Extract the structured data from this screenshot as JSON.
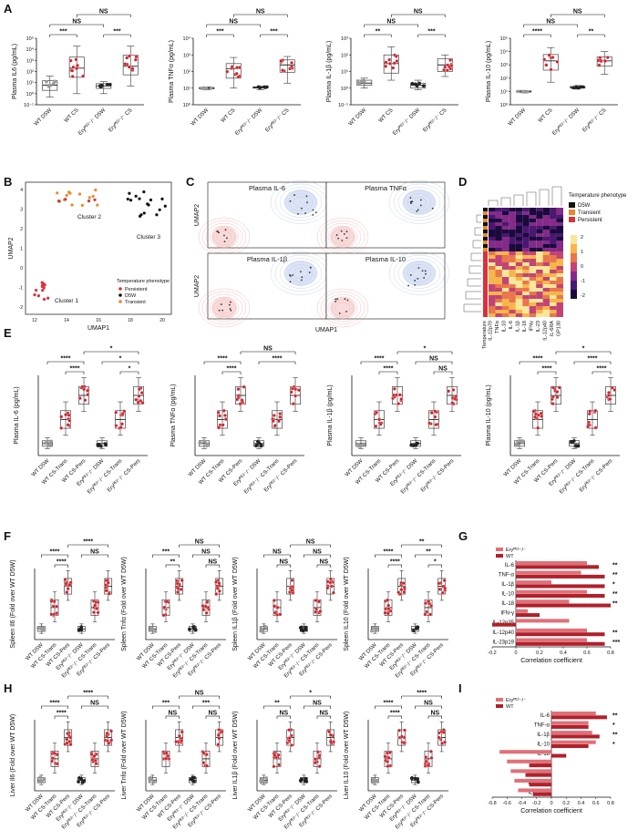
{
  "panel_letters": [
    "A",
    "B",
    "C",
    "D",
    "E",
    "F",
    "G",
    "H",
    "I"
  ],
  "colors": {
    "wt_box": "#888888",
    "d5w_pt": "#9a9a9a",
    "ery_pt": "#222222",
    "cs_pt": "#c8242c",
    "bar_light": "#e07078",
    "bar_dark": "#b0202a",
    "persistent": "#d9323a",
    "d5w": "#111111",
    "transient": "#e8892a"
  },
  "chart_data": [
    {
      "panel": "A",
      "type": "box",
      "log_y": true,
      "ylabel": "Plasma IL6 (pg/mL)",
      "yticks": [
        "10⁻¹",
        "10⁰",
        "10¹",
        "10²",
        "10³",
        "10⁴",
        "10⁵"
      ],
      "categories": [
        "WT D5W",
        "WT CS",
        "Eryᴾᴱ²⁻/⁻ D5W",
        "Eryᴾᴱ²⁻/⁻ CS"
      ],
      "box_values": [
        {
          "min": 0.5,
          "q1": 2,
          "median": 6,
          "q3": 15,
          "max": 40
        },
        {
          "min": 1,
          "q1": 30,
          "median": 200,
          "q3": 2000,
          "max": 20000
        },
        {
          "min": 1,
          "q1": 3,
          "median": 5,
          "q3": 8,
          "max": 12
        },
        {
          "min": 5,
          "q1": 50,
          "median": 300,
          "q3": 3000,
          "max": 20000
        }
      ],
      "significance": [
        "***",
        "***",
        "NS",
        "NS"
      ]
    },
    {
      "panel": "A",
      "type": "box",
      "log_y": true,
      "ylabel": "Plasma TNFα (pg/mL)",
      "yticks": [
        "10⁰",
        "10¹",
        "10²",
        "10³",
        "10⁴"
      ],
      "categories": [
        "WT D5W",
        "WT CS",
        "Eryᴾᴱ²⁻/⁻ D5W",
        "Eryᴾᴱ²⁻/⁻ CS"
      ],
      "box_values": [
        {
          "min": 8,
          "q1": 9,
          "median": 10,
          "q3": 11,
          "max": 12
        },
        {
          "min": 10,
          "q1": 40,
          "median": 150,
          "q3": 300,
          "max": 700
        },
        {
          "min": 8,
          "q1": 10,
          "median": 11,
          "q3": 12,
          "max": 13
        },
        {
          "min": 20,
          "q1": 90,
          "median": 250,
          "q3": 500,
          "max": 800
        }
      ],
      "significance": [
        "***",
        "***",
        "NS",
        "NS"
      ]
    },
    {
      "panel": "A",
      "type": "box",
      "log_y": true,
      "ylabel": "Plasma IL-1β (pg/mL)",
      "yticks": [
        "10⁻¹",
        "10⁰",
        "10¹",
        "10²",
        "10³"
      ],
      "categories": [
        "WT D5W",
        "WT CS",
        "Eryᴾᴱ²⁻/⁻ D5W",
        "Eryᴾᴱ²⁻/⁻ CS"
      ],
      "box_values": [
        {
          "min": 1,
          "q1": 1.5,
          "median": 2,
          "q3": 3,
          "max": 4
        },
        {
          "min": 3,
          "q1": 8,
          "median": 30,
          "q3": 100,
          "max": 300
        },
        {
          "min": 0.8,
          "q1": 1,
          "median": 1.5,
          "q3": 2,
          "max": 3
        },
        {
          "min": 5,
          "q1": 10,
          "median": 25,
          "q3": 60,
          "max": 100
        }
      ],
      "significance": [
        "**",
        "***",
        "NS",
        "NS"
      ]
    },
    {
      "panel": "A",
      "type": "box",
      "log_y": true,
      "ylabel": "Plasma IL-10 (pg/mL)",
      "yticks": [
        "10⁰",
        "10¹",
        "10²",
        "10³",
        "10⁴",
        "10⁵"
      ],
      "categories": [
        "WT D5W",
        "WT CS",
        "Eryᴾᴱ²⁻/⁻ D5W",
        "Eryᴾᴱ²⁻/⁻ CS"
      ],
      "box_values": [
        {
          "min": 8,
          "q1": 9,
          "median": 10,
          "q3": 11,
          "max": 12
        },
        {
          "min": 50,
          "q1": 400,
          "median": 2000,
          "q3": 6000,
          "max": 20000
        },
        {
          "min": 15,
          "q1": 18,
          "median": 20,
          "q3": 24,
          "max": 28
        },
        {
          "min": 200,
          "q1": 800,
          "median": 2000,
          "q3": 4000,
          "max": 10000
        }
      ],
      "significance": [
        "****",
        "**",
        "NS",
        "NS"
      ]
    },
    {
      "panel": "B",
      "type": "scatter",
      "xlabel": "UMAP1",
      "ylabel": "UMAP2",
      "xticks": [
        "12",
        "14",
        "16",
        "18",
        "20"
      ],
      "yticks": [
        "-2",
        "-1",
        "0",
        "1",
        "2",
        "3",
        "4"
      ],
      "clusters": [
        "Cluster 1",
        "Cluster 2",
        "Cluster 3"
      ],
      "legend_title": "Temperature phenotype",
      "legend": [
        "Persistent",
        "D5W",
        "Transient"
      ]
    },
    {
      "panel": "C",
      "type": "density",
      "titles": [
        "Plasma IL-6",
        "Plasma TNFα",
        "Plasma IL-1β",
        "Plasma IL-10"
      ],
      "xlabel": "UMAP1",
      "ylabel": "UMAP2"
    },
    {
      "panel": "D",
      "type": "heatmap",
      "row_labels": [
        "Temperature",
        "IL-12p70",
        "TNFα",
        "IL-10",
        "IL-6",
        "IL-1β",
        "IL-18",
        "IFNγ",
        "IL-23",
        "IL-12p40",
        "IL-6RA",
        "GP130"
      ],
      "legend_title": "Temperature phenotype",
      "legend": [
        "D5W",
        "Transient",
        "Persistent"
      ],
      "scale_ticks": [
        "2",
        "1",
        "0",
        "-1",
        "-2"
      ]
    },
    {
      "panel": "E",
      "type": "box",
      "log_y": true,
      "ylabel": "Plasma IL-6 (pg/mL)",
      "categories": [
        "WT D5W",
        "WT CS-Trans",
        "WT CS-Pers",
        "Eryᴾᴱ²⁻/⁻ D5W",
        "Eryᴾᴱ²⁻/⁻ CS-Trans",
        "Eryᴾᴱ²⁻/⁻ CS-Pers"
      ],
      "significance": [
        "****",
        "****",
        "*",
        "*",
        "*"
      ]
    },
    {
      "panel": "E",
      "type": "box",
      "log_y": true,
      "ylabel": "Plasma TNFα (pg/mL)",
      "categories": [
        "WT D5W",
        "WT CS-Trans",
        "WT CS-Pers",
        "Eryᴾᴱ²⁻/⁻ D5W",
        "Eryᴾᴱ²⁻/⁻ CS-Trans",
        "Eryᴾᴱ²⁻/⁻ CS-Pers"
      ],
      "significance": [
        "****",
        "****",
        "NS",
        "****"
      ]
    },
    {
      "panel": "E",
      "type": "box",
      "log_y": true,
      "ylabel": "Plasma IL-1β (pg/mL)",
      "categories": [
        "WT D5W",
        "WT CS-Trans",
        "WT CS-Pers",
        "Eryᴾᴱ²⁻/⁻ D5W",
        "Eryᴾᴱ²⁻/⁻ CS-Trans",
        "Eryᴾᴱ²⁻/⁻ CS-Pers"
      ],
      "significance": [
        "****",
        "****",
        "*",
        "NS",
        "NS"
      ]
    },
    {
      "panel": "E",
      "type": "box",
      "log_y": true,
      "ylabel": "Plasma IL-10 (pg/mL)",
      "categories": [
        "WT D5W",
        "WT CS-Trans",
        "WT CS-Pers",
        "Eryᴾᴱ²⁻/⁻ D5W",
        "Eryᴾᴱ²⁻/⁻ CS-Trans",
        "Eryᴾᴱ²⁻/⁻ CS-Pers"
      ],
      "significance": [
        "****",
        "****",
        "*",
        "****",
        "****"
      ]
    },
    {
      "panel": "F",
      "type": "box",
      "ylabel": "Spleen Il6 (Fold over WT D5W)",
      "categories": [
        "WT D5W",
        "WT CS-Trans",
        "WT CS-Pers",
        "Eryᴾᴱ²⁻/⁻ D5W",
        "Eryᴾᴱ²⁻/⁻ CS-Trans",
        "Eryᴾᴱ²⁻/⁻ CS-Pers"
      ],
      "significance": [
        "****",
        "****",
        "****",
        "NS"
      ]
    },
    {
      "panel": "F",
      "type": "box",
      "ylabel": "Spleen Tnfα (Fold over WT D5W)",
      "categories": [
        "WT D5W",
        "WT CS-Trans",
        "WT CS-Pers",
        "Eryᴾᴱ²⁻/⁻ D5W",
        "Eryᴾᴱ²⁻/⁻ CS-Trans",
        "Eryᴾᴱ²⁻/⁻ CS-Pers"
      ],
      "significance": [
        "***",
        "**",
        "NS",
        "NS",
        "NS"
      ]
    },
    {
      "panel": "F",
      "type": "box",
      "ylabel": "Spleen IL1β (Fold over WT D5W)",
      "categories": [
        "WT D5W",
        "WT CS-Trans",
        "WT CS-Pers",
        "Eryᴾᴱ²⁻/⁻ D5W",
        "Eryᴾᴱ²⁻/⁻ CS-Trans",
        "Eryᴾᴱ²⁻/⁻ CS-Pers"
      ],
      "significance": [
        "NS",
        "NS",
        "NS",
        "NS",
        "NS"
      ]
    },
    {
      "panel": "F",
      "type": "box",
      "ylabel": "Spleen IL10 (Fold over WT D5W)",
      "categories": [
        "WT D5W",
        "WT CS-Trans",
        "WT CS-Pers",
        "Eryᴾᴱ²⁻/⁻ D5W",
        "Eryᴾᴱ²⁻/⁻ CS-Trans",
        "Eryᴾᴱ²⁻/⁻ CS-Pers"
      ],
      "significance": [
        "****",
        "****",
        "**",
        "**",
        "*"
      ]
    },
    {
      "panel": "G",
      "type": "bar",
      "orientation": "horizontal",
      "xlabel": "Correlation coefficient",
      "xlim": [
        -0.2,
        0.8
      ],
      "xticks": [
        "-0.2",
        "0",
        "0.2",
        "0.4",
        "0.6",
        "0.8"
      ],
      "categories": [
        "IL-6",
        "TNF-α",
        "IL-1β",
        "IL-10",
        "IL-18",
        "IFN-γ",
        "IL-12p35",
        "IL-12p40",
        "IL-23p19"
      ],
      "series": [
        {
          "name": "Eryᴾᴱ²⁻/⁻",
          "values": [
            0.6,
            0.55,
            0.3,
            0.6,
            0.45,
            0.1,
            0.45,
            0.6,
            0.6
          ]
        },
        {
          "name": "WT",
          "values": [
            0.7,
            0.75,
            0.75,
            0.75,
            0.8,
            0.2,
            -0.2,
            0.75,
            0.75
          ]
        }
      ],
      "significance": [
        "**",
        "**",
        "*",
        "**",
        "**",
        "",
        "",
        "**",
        "***"
      ]
    },
    {
      "panel": "H",
      "type": "box",
      "ylabel": "Liver Il6 (Fold over WT D5W)",
      "categories": [
        "WT D5W",
        "WT CS-Trans",
        "WT CS-Pers",
        "Eryᴾᴱ²⁻/⁻ D5W",
        "Eryᴾᴱ²⁻/⁻ CS-Trans",
        "Eryᴾᴱ²⁻/⁻ CS-Pers"
      ],
      "significance": [
        "****",
        "****",
        "****",
        "NS"
      ]
    },
    {
      "panel": "H",
      "type": "box",
      "ylabel": "Liver Tnfα (Fold over WT D5W)",
      "categories": [
        "WT D5W",
        "WT CS-Trans",
        "WT CS-Pers",
        "Eryᴾᴱ²⁻/⁻ D5W",
        "Eryᴾᴱ²⁻/⁻ CS-Trans",
        "Eryᴾᴱ²⁻/⁻ CS-Pers"
      ],
      "significance": [
        "***",
        "NS",
        "NS",
        "***",
        "NS"
      ]
    },
    {
      "panel": "H",
      "type": "box",
      "ylabel": "Liver IL1β (Fold over WT D5W)",
      "categories": [
        "WT D5W",
        "WT CS-Trans",
        "WT CS-Pers",
        "Eryᴾᴱ²⁻/⁻ D5W",
        "Eryᴾᴱ²⁻/⁻ CS-Trans",
        "Eryᴾᴱ²⁻/⁻ CS-Pers"
      ],
      "significance": [
        "**",
        "NS",
        "*",
        "NS",
        "NS"
      ]
    },
    {
      "panel": "H",
      "type": "box",
      "ylabel": "Liver IL10 (Fold over WT D5W)",
      "categories": [
        "WT D5W",
        "WT CS-Trans",
        "WT CS-Pers",
        "Eryᴾᴱ²⁻/⁻ D5W",
        "Eryᴾᴱ²⁻/⁻ CS-Trans",
        "Eryᴾᴱ²⁻/⁻ CS-Pers"
      ],
      "significance": [
        "****",
        "****",
        "****",
        "NS",
        "NS"
      ]
    },
    {
      "panel": "I",
      "type": "bar",
      "orientation": "horizontal",
      "xlabel": "Correlation coefficient",
      "xlim": [
        -0.8,
        0.8
      ],
      "xticks": [
        "-0.8",
        "-0.6",
        "-0.4",
        "-0.2",
        "0",
        "0.2",
        "0.4",
        "0.6",
        "0.8"
      ],
      "categories": [
        "IL-6",
        "TNF-α",
        "IL-1β",
        "IL-10",
        "IL-18",
        "IFN-γ",
        "IL-12p35",
        "IL-12p40",
        "IL-23p19"
      ],
      "series": [
        {
          "name": "Eryᴾᴱ²⁻/⁻",
          "values": [
            0.6,
            0.5,
            0.55,
            0.6,
            -0.7,
            -0.6,
            -0.55,
            -0.5,
            -0.45
          ]
        },
        {
          "name": "WT",
          "values": [
            0.75,
            0.5,
            0.65,
            0.5,
            0.2,
            -0.3,
            -0.35,
            -0.3,
            -0.25
          ]
        }
      ],
      "significance": [
        "**",
        "*",
        "**",
        "*",
        "",
        "",
        "",
        "",
        ""
      ]
    }
  ]
}
